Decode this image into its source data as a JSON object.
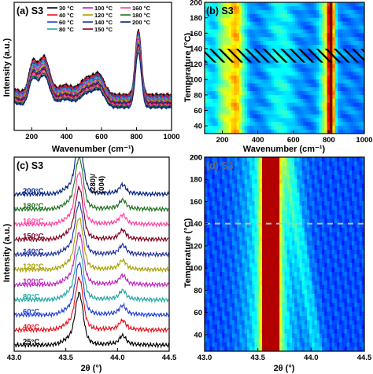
{
  "chart_data": [
    {
      "panel": "(a) S3",
      "type": "line",
      "xlabel": "Wavenumber (cm⁻¹)",
      "ylabel": "Intensity (a.u.)",
      "xlim": [
        100,
        1000
      ],
      "xticks": [
        "200",
        "400",
        "600",
        "800",
        "1000"
      ],
      "legend_position": "top",
      "legend_columns": [
        [
          "30 °C",
          "40 °C",
          "60 °C",
          "80 °C"
        ],
        [
          "100 °C",
          "120 °C",
          "140 °C",
          "150 °C"
        ],
        [
          "160 °C",
          "180 °C",
          "200 °C"
        ]
      ],
      "series": [
        {
          "name": "30 °C",
          "color": "#000000",
          "offset": 0
        },
        {
          "name": "40 °C",
          "color": "#e8101a",
          "offset": 1
        },
        {
          "name": "60 °C",
          "color": "#2040d8",
          "offset": 2
        },
        {
          "name": "80 °C",
          "color": "#20a8a0",
          "offset": 3
        },
        {
          "name": "100 °C",
          "color": "#c020c0",
          "offset": 4
        },
        {
          "name": "120 °C",
          "color": "#a8a000",
          "offset": 5
        },
        {
          "name": "140 °C",
          "color": "#2030a0",
          "offset": 6
        },
        {
          "name": "150 °C",
          "color": "#800020",
          "offset": 7
        },
        {
          "name": "160 °C",
          "color": "#ff40a0",
          "offset": 8
        },
        {
          "name": "180 °C",
          "color": "#207020",
          "offset": 9
        },
        {
          "name": "200 °C",
          "color": "#002080",
          "offset": 10
        }
      ],
      "peaks_cm1": [
        270,
        520,
        810
      ]
    },
    {
      "panel": "(b) S3",
      "type": "heatmap",
      "xlabel": "Wavenumber (cm⁻¹)",
      "ylabel": "Temperature (°C)",
      "xlim": [
        100,
        1000
      ],
      "ylim": [
        30,
        200
      ],
      "xticks": [
        "200",
        "400",
        "600",
        "800",
        "1000"
      ],
      "yticks": [
        "40",
        "60",
        "80",
        "100",
        "120",
        "140",
        "160",
        "180",
        "200"
      ],
      "hatched_band_C": [
        122,
        140
      ]
    },
    {
      "panel": "(c) S3",
      "type": "line",
      "xlabel": "2θ (°)",
      "ylabel": "Intensity (a.u.)",
      "xlim": [
        43.0,
        44.5
      ],
      "xticks": [
        "43.0",
        "43.5",
        "44.0",
        "44.5"
      ],
      "annotation": "(280)/(004)",
      "series": [
        {
          "name": "25°C",
          "color": "#000000",
          "offset": 0
        },
        {
          "name": "40°C",
          "color": "#e8101a",
          "offset": 1
        },
        {
          "name": "60°C",
          "color": "#2040d8",
          "offset": 2
        },
        {
          "name": "80°C",
          "color": "#20a8a0",
          "offset": 3
        },
        {
          "name": "100°C",
          "color": "#c020c0",
          "offset": 4
        },
        {
          "name": "120°C",
          "color": "#a8a000",
          "offset": 5
        },
        {
          "name": "140°C",
          "color": "#2030a0",
          "offset": 6
        },
        {
          "name": "150°C",
          "color": "#800020",
          "offset": 7
        },
        {
          "name": "160°C",
          "color": "#ff40a0",
          "offset": 8
        },
        {
          "name": "180°C",
          "color": "#207020",
          "offset": 9
        },
        {
          "name": "200°C",
          "color": "#002080",
          "offset": 10
        }
      ],
      "peaks_2theta": [
        43.62,
        44.05
      ]
    },
    {
      "panel": "(d) S3",
      "type": "heatmap",
      "xlabel": "2θ (°)",
      "ylabel": "Temperature (°C)",
      "xlim": [
        43.0,
        44.5
      ],
      "ylim": [
        25,
        200
      ],
      "xticks": [
        "43.0",
        "43.5",
        "44.0",
        "44.5"
      ],
      "yticks": [
        "40",
        "60",
        "80",
        "100",
        "120",
        "140",
        "160",
        "180",
        "200"
      ],
      "dashed_line_C": 140
    }
  ]
}
